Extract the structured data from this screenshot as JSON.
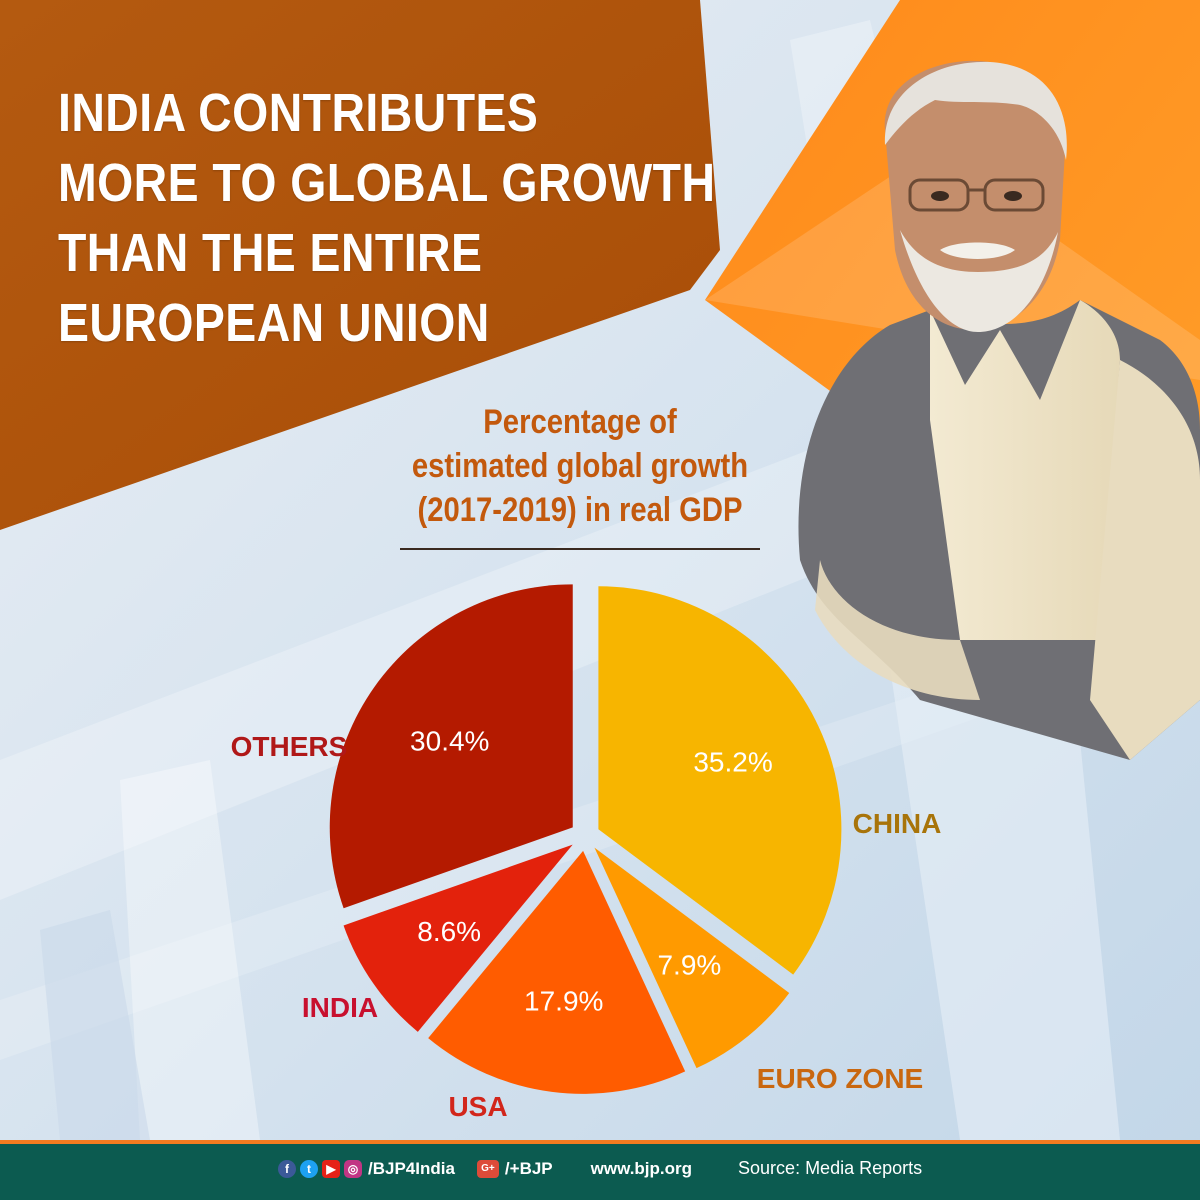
{
  "headline": {
    "lines": [
      "INDIA CONTRIBUTES",
      "MORE TO GLOBAL GROWTH",
      "THAN THE ENTIRE",
      "EUROPEAN UNION"
    ]
  },
  "chart_data": {
    "type": "pie",
    "title_lines": [
      "Percentage of",
      "estimated global growth",
      "(2017-2019) in real GDP"
    ],
    "unit": "%",
    "slices": [
      {
        "label": "CHINA",
        "value": 35.2,
        "value_label": "35.2%",
        "color": "#f7b500",
        "label_color": "#a8740a"
      },
      {
        "label": "EURO ZONE",
        "value": 7.9,
        "value_label": "7.9%",
        "color": "#ff9a00",
        "label_color": "#c9670f"
      },
      {
        "label": "USA",
        "value": 17.9,
        "value_label": "17.9%",
        "color": "#ff5c00",
        "label_color": "#d2261b"
      },
      {
        "label": "INDIA",
        "value": 8.6,
        "value_label": "8.6%",
        "color": "#e3220c",
        "label_color": "#c8102e"
      },
      {
        "label": "OTHERS",
        "value": 30.4,
        "value_label": "30.4%",
        "color": "#b41a00",
        "label_color": "#b01818"
      }
    ]
  },
  "footer": {
    "social_handle": "/BJP4India",
    "gplus_handle": "/+BJP",
    "website": "www.bjp.org",
    "source": "Source: Media Reports"
  },
  "icons": [
    "facebook-icon",
    "twitter-icon",
    "youtube-icon",
    "instagram-icon",
    "google-plus-icon",
    "portrait-photo"
  ]
}
